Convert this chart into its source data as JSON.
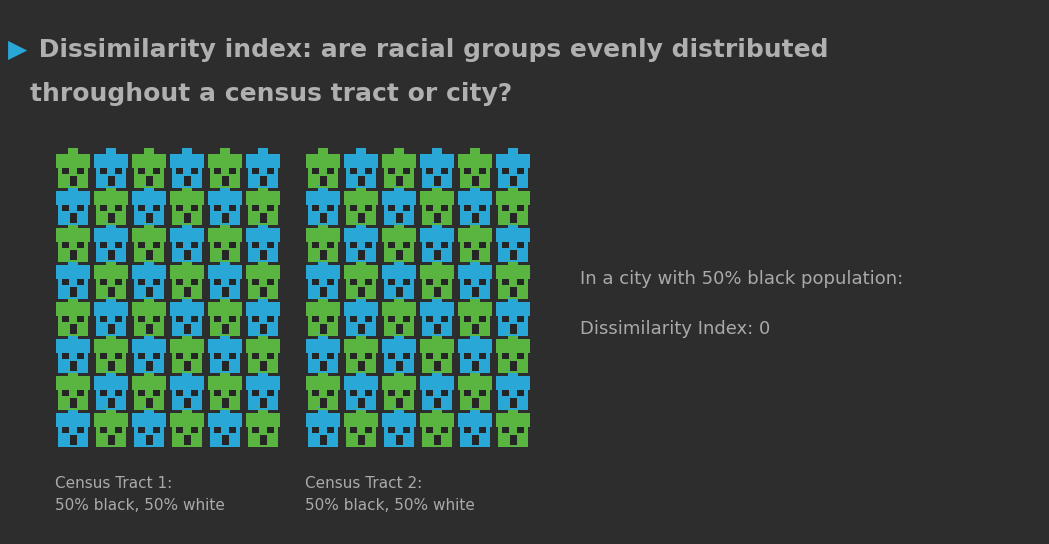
{
  "background_color": "#2d2d2d",
  "title_arrow": "▶",
  "title_text1": " Dissimilarity index: are racial groups evenly distributed",
  "title_text2": "throughout a census tract or city?",
  "title_color": "#b0b0b0",
  "title_arrow_color": "#29a8d8",
  "title_fontsize": 18,
  "green_color": "#5ab540",
  "blue_color": "#29a8d8",
  "tract1_label_line1": "Census Tract 1:",
  "tract1_label_line2": "50% black, 50% white",
  "tract2_label_line1": "Census Tract 2:",
  "tract2_label_line2": "50% black, 50% white",
  "label_color": "#aaaaaa",
  "label_fontsize": 11,
  "info_text1": "In a city with 50% black population:",
  "info_text2": "Dissimilarity Index: 0",
  "info_color": "#aaaaaa",
  "info_fontsize": 13,
  "grid_rows": 8,
  "grid_cols": 6
}
